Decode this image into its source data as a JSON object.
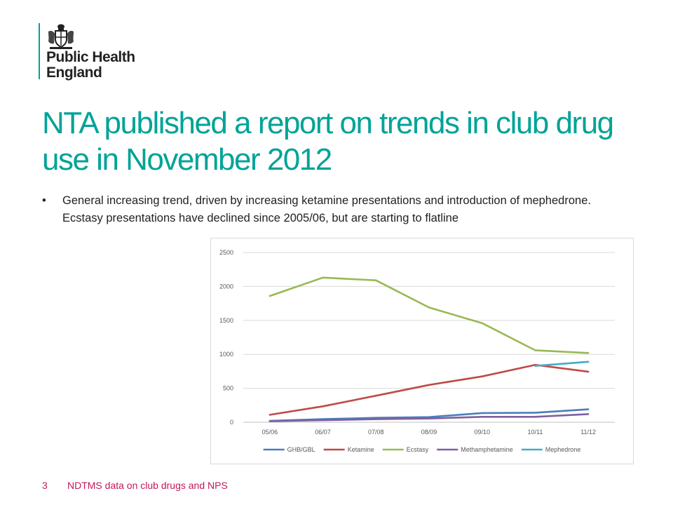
{
  "logo": {
    "line1": "Public Health",
    "line2": "England",
    "icon": "royal-crest-icon"
  },
  "title": "NTA published a report on trends in club drug use in November 2012",
  "bullet": {
    "marker": "•",
    "text": "General increasing trend, driven by increasing ketamine presentations and introduction of mephedrone.  Ecstasy presentations have declined since 2005/06, but are starting to flatline"
  },
  "footer": {
    "page_number": "3",
    "text": "NDTMS data on club drugs and NPS"
  },
  "chart_data": {
    "type": "line",
    "categories": [
      "05/06",
      "06/07",
      "07/08",
      "08/09",
      "09/10",
      "10/11",
      "11/12"
    ],
    "ylim": [
      0,
      2500
    ],
    "yticks": [
      0,
      500,
      1000,
      1500,
      2000,
      2500
    ],
    "grid": true,
    "legend": "bottom",
    "series": [
      {
        "name": "GHB/GBL",
        "color": "#4a7ebb",
        "values": [
          20,
          45,
          65,
          75,
          135,
          140,
          190
        ]
      },
      {
        "name": "Ketamine",
        "color": "#be4b48",
        "values": [
          110,
          235,
          390,
          550,
          675,
          845,
          745
        ]
      },
      {
        "name": "Ecstasy",
        "color": "#98b954",
        "values": [
          1860,
          2130,
          2090,
          1690,
          1460,
          1060,
          1020
        ]
      },
      {
        "name": "Methamphetamine",
        "color": "#7d60a0",
        "values": [
          15,
          30,
          45,
          55,
          80,
          80,
          120
        ]
      },
      {
        "name": "Mephedrone",
        "color": "#46aac5",
        "values": [
          null,
          null,
          null,
          null,
          null,
          830,
          890
        ]
      }
    ]
  }
}
